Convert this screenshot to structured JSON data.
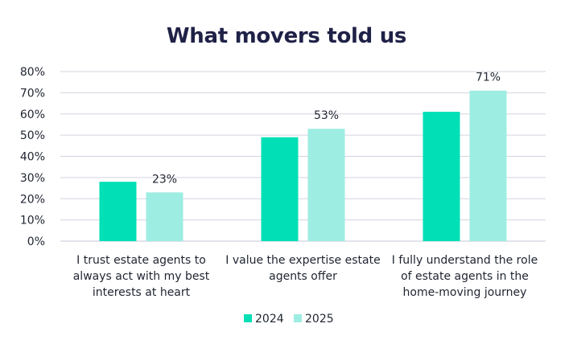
{
  "chart_data": {
    "type": "bar",
    "title": "What movers told us",
    "categories": [
      [
        "I trust estate agents to",
        "always act with my best",
        "interests at heart"
      ],
      [
        "I value the expertise estate",
        "agents offer"
      ],
      [
        "I fully understand the role",
        "of estate agents in the",
        "home-moving journey"
      ]
    ],
    "series": [
      {
        "name": "2024",
        "values": [
          28,
          49,
          61
        ],
        "color": "#00dfb5"
      },
      {
        "name": "2025",
        "values": [
          23,
          53,
          71
        ],
        "color": "#9eede2"
      }
    ],
    "data_labels": {
      "series_index": 1,
      "texts": [
        "23%",
        "53%",
        "71%"
      ]
    },
    "ylim": [
      0,
      80
    ],
    "yticks": [
      "0%",
      "10%",
      "20%",
      "30%",
      "40%",
      "50%",
      "60%",
      "70%",
      "80%"
    ],
    "grid": true,
    "legend_position": "bottom",
    "xlabel": "",
    "ylabel": ""
  }
}
